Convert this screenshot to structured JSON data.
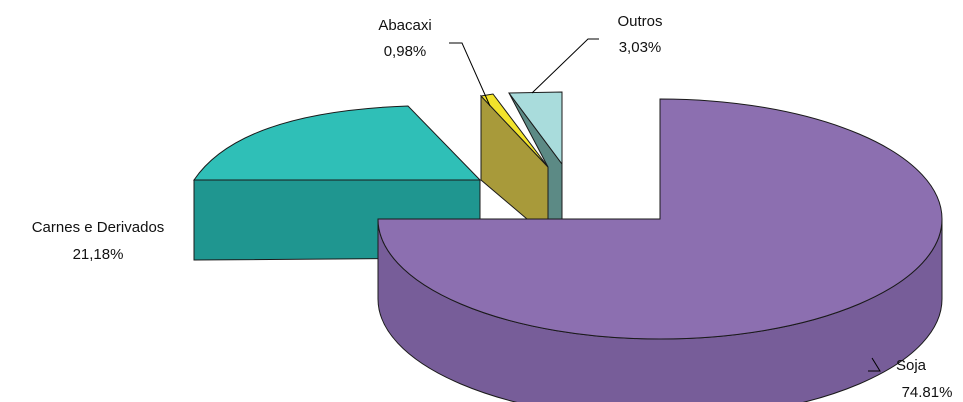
{
  "chart_data": {
    "type": "pie",
    "style": "3d-exploded",
    "slices": [
      {
        "label": "Soja",
        "value_text": "74.81%",
        "value": 74.81,
        "color": "#8c6fb0",
        "side_color": "#775d99"
      },
      {
        "label": "Carnes e Derivados",
        "value_text": "21,18%",
        "value": 21.18,
        "color": "#2fbfb7",
        "side_color": "#1f9690"
      },
      {
        "label": "Abacaxi",
        "value_text": "0,98%",
        "value": 0.98,
        "color": "#f2e32b",
        "side_color": "#a89a3a"
      },
      {
        "label": "Outros",
        "value_text": "3,03%",
        "value": 3.03,
        "color": "#a9dcdc",
        "side_color": "#5c8a85"
      }
    ]
  }
}
